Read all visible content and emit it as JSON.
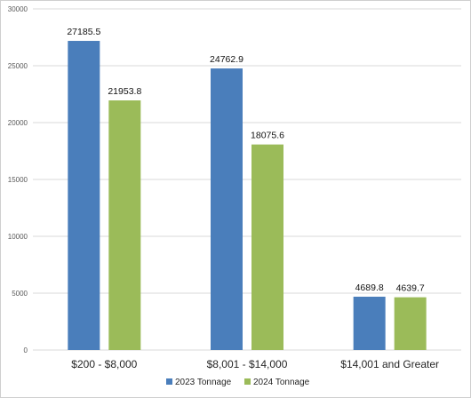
{
  "chart_data": {
    "type": "bar",
    "categories": [
      "$200 - $8,000",
      "$8,001 - $14,000",
      "$14,001 and Greater"
    ],
    "series": [
      {
        "name": "2023 Tonnage",
        "values": [
          27185.5,
          24762.9,
          4689.8
        ],
        "labels": [
          "27185.5",
          "24762.9",
          "4689.8"
        ],
        "color": "#4a7ebb"
      },
      {
        "name": "2024 Tonnage",
        "values": [
          21953.8,
          18075.6,
          4639.7
        ],
        "labels": [
          "21953.8",
          "18075.6",
          "4639.7"
        ],
        "color": "#9bbb59"
      }
    ],
    "yticks": [
      0,
      5000,
      10000,
      15000,
      20000,
      25000,
      30000
    ],
    "ylim": [
      0,
      30000
    ],
    "grid": true,
    "legend": "bottom"
  }
}
